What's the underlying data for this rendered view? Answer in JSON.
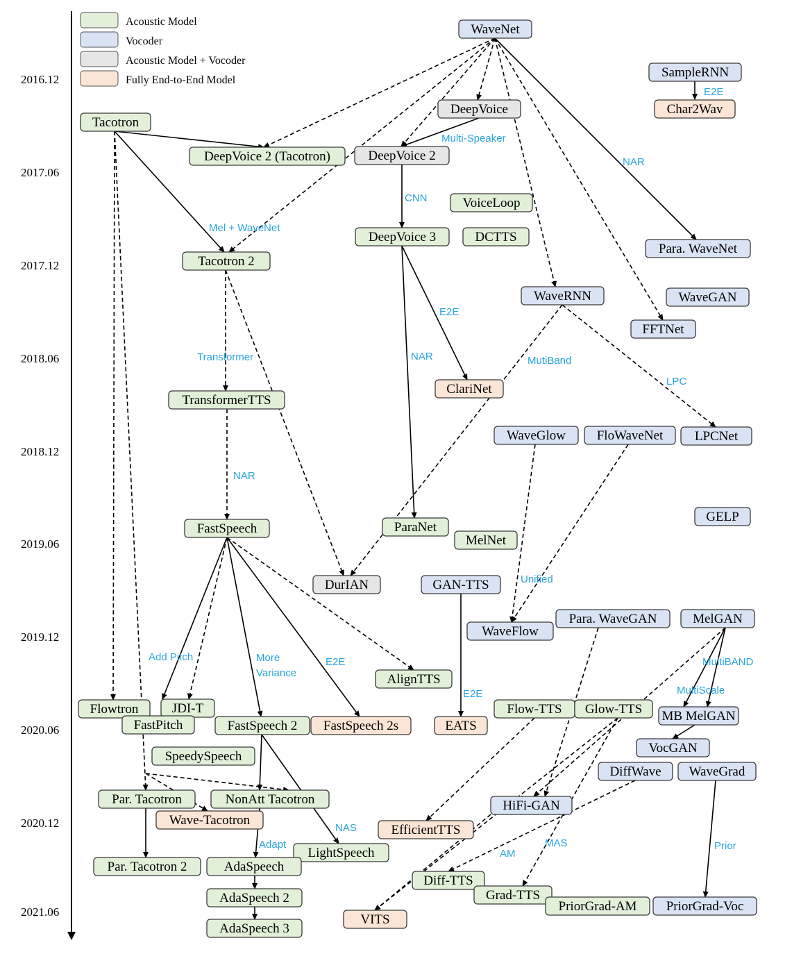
{
  "colors": {
    "acoustic": "#e2f0d9",
    "vocoder": "#dae3f3",
    "combined": "#e7e6e6",
    "e2e": "#fbe5d6",
    "edge": "#000000",
    "edge_label": "#29a3e0"
  },
  "legend": [
    {
      "label": "Acoustic Model",
      "type": "acoustic"
    },
    {
      "label": "Vocoder",
      "type": "vocoder"
    },
    {
      "label": "Acoustic Model + Vocoder",
      "type": "combined"
    },
    {
      "label": "Fully End-to-End Model",
      "type": "e2e"
    }
  ],
  "timeline": [
    "2016.12",
    "2017.06",
    "2017.12",
    "2018.06",
    "2018.12",
    "2019.06",
    "2019.12",
    "2020.06",
    "2020.12",
    "2021.06"
  ],
  "nodes": [
    {
      "id": "wavenet",
      "label": "WaveNet",
      "type": "vocoder"
    },
    {
      "id": "samplernn",
      "label": "SampleRNN",
      "type": "vocoder"
    },
    {
      "id": "char2wav",
      "label": "Char2Wav",
      "type": "e2e"
    },
    {
      "id": "tacotron",
      "label": "Tacotron",
      "type": "acoustic"
    },
    {
      "id": "deepvoice",
      "label": "DeepVoice",
      "type": "combined"
    },
    {
      "id": "dv2taco",
      "label": "DeepVoice 2 (Tacotron)",
      "type": "acoustic"
    },
    {
      "id": "deepvoice2",
      "label": "DeepVoice 2",
      "type": "combined"
    },
    {
      "id": "voiceloop",
      "label": "VoiceLoop",
      "type": "acoustic"
    },
    {
      "id": "deepvoice3",
      "label": "DeepVoice 3",
      "type": "acoustic"
    },
    {
      "id": "dctts",
      "label": "DCTTS",
      "type": "acoustic"
    },
    {
      "id": "tacotron2",
      "label": "Tacotron 2",
      "type": "acoustic"
    },
    {
      "id": "parawavenet",
      "label": "Para. WaveNet",
      "type": "vocoder"
    },
    {
      "id": "wavernn",
      "label": "WaveRNN",
      "type": "vocoder"
    },
    {
      "id": "wavegan",
      "label": "WaveGAN",
      "type": "vocoder"
    },
    {
      "id": "fftnet",
      "label": "FFTNet",
      "type": "vocoder"
    },
    {
      "id": "clarinet",
      "label": "ClariNet",
      "type": "e2e"
    },
    {
      "id": "transformertts",
      "label": "TransformerTTS",
      "type": "acoustic"
    },
    {
      "id": "waveglow",
      "label": "WaveGlow",
      "type": "vocoder"
    },
    {
      "id": "flowavenet",
      "label": "FloWaveNet",
      "type": "vocoder"
    },
    {
      "id": "lpcnet",
      "label": "LPCNet",
      "type": "vocoder"
    },
    {
      "id": "gelp",
      "label": "GELP",
      "type": "vocoder"
    },
    {
      "id": "fastspeech",
      "label": "FastSpeech",
      "type": "acoustic"
    },
    {
      "id": "paranet",
      "label": "ParaNet",
      "type": "acoustic"
    },
    {
      "id": "melnet",
      "label": "MelNet",
      "type": "acoustic"
    },
    {
      "id": "durian",
      "label": "DurIAN",
      "type": "combined"
    },
    {
      "id": "gantts",
      "label": "GAN-TTS",
      "type": "vocoder"
    },
    {
      "id": "waveflow",
      "label": "WaveFlow",
      "type": "vocoder"
    },
    {
      "id": "parawavegan",
      "label": "Para. WaveGAN",
      "type": "vocoder"
    },
    {
      "id": "melgan",
      "label": "MelGAN",
      "type": "vocoder"
    },
    {
      "id": "aligntts",
      "label": "AlignTTS",
      "type": "acoustic"
    },
    {
      "id": "flowtron",
      "label": "Flowtron",
      "type": "acoustic"
    },
    {
      "id": "jdit",
      "label": "JDI-T",
      "type": "acoustic"
    },
    {
      "id": "fastpitch",
      "label": "FastPitch",
      "type": "acoustic"
    },
    {
      "id": "fastspeech2",
      "label": "FastSpeech 2",
      "type": "acoustic"
    },
    {
      "id": "fastspeech2s",
      "label": "FastSpeech 2s",
      "type": "e2e"
    },
    {
      "id": "eats",
      "label": "EATS",
      "type": "e2e"
    },
    {
      "id": "flowtts",
      "label": "Flow-TTS",
      "type": "acoustic"
    },
    {
      "id": "glowtts",
      "label": "Glow-TTS",
      "type": "acoustic"
    },
    {
      "id": "mbmelgan",
      "label": "MB MelGAN",
      "type": "vocoder"
    },
    {
      "id": "speedyspeech",
      "label": "SpeedySpeech",
      "type": "acoustic"
    },
    {
      "id": "vocgan",
      "label": "VocGAN",
      "type": "vocoder"
    },
    {
      "id": "diffwave",
      "label": "DiffWave",
      "type": "vocoder"
    },
    {
      "id": "wavegrad",
      "label": "WaveGrad",
      "type": "vocoder"
    },
    {
      "id": "partacotron",
      "label": "Par. Tacotron",
      "type": "acoustic"
    },
    {
      "id": "nonatttacotron",
      "label": "NonAtt Tacotron",
      "type": "acoustic"
    },
    {
      "id": "wavetacotron",
      "label": "Wave-Tacotron",
      "type": "e2e"
    },
    {
      "id": "hifigan",
      "label": "HiFi-GAN",
      "type": "vocoder"
    },
    {
      "id": "efficienttts",
      "label": "EfficientTTS",
      "type": "e2e"
    },
    {
      "id": "lightspeech",
      "label": "LightSpeech",
      "type": "acoustic"
    },
    {
      "id": "partacotron2",
      "label": "Par. Tacotron 2",
      "type": "acoustic"
    },
    {
      "id": "adaspeech",
      "label": "AdaSpeech",
      "type": "acoustic"
    },
    {
      "id": "difftts",
      "label": "Diff-TTS",
      "type": "acoustic"
    },
    {
      "id": "gradtts",
      "label": "Grad-TTS",
      "type": "acoustic"
    },
    {
      "id": "priorgradam",
      "label": "PriorGrad-AM",
      "type": "acoustic"
    },
    {
      "id": "priorgradvoc",
      "label": "PriorGrad-Voc",
      "type": "vocoder"
    },
    {
      "id": "adaspeech2",
      "label": "AdaSpeech 2",
      "type": "acoustic"
    },
    {
      "id": "vits",
      "label": "VITS",
      "type": "e2e"
    },
    {
      "id": "adaspeech3",
      "label": "AdaSpeech 3",
      "type": "acoustic"
    }
  ],
  "edge_labels": [
    "E2E",
    "Multi-Speaker",
    "NAR",
    "CNN",
    "Mel + WaveNet",
    "E2E",
    "NAR",
    "MutiBand",
    "LPC",
    "Transformer",
    "NAR",
    "Unified",
    "Add Pitch",
    "More",
    "Variance",
    "E2E",
    "E2E",
    "MultiBAND",
    "MultiScale",
    "NAS",
    "Adapt",
    "AM",
    "MAS",
    "Prior"
  ]
}
